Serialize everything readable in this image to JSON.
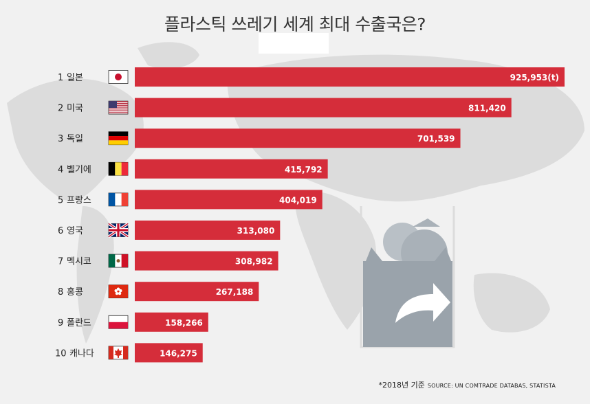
{
  "title": "플라스틱 쓰레기 세계 최대 수출국은?",
  "footnote": "*2018년 기준",
  "source": "SOURCE: UN COMTRADE DATABAS, STATISTA",
  "colors": {
    "bar": "#d52d3a",
    "background": "#f1f1f1",
    "map": "#dadada",
    "icon": "#9aa3ab"
  },
  "icon": "export-trash-bag-icon",
  "chart_data": {
    "type": "bar",
    "orientation": "horizontal",
    "title": "플라스틱 쓰레기 세계 최대 수출국은?",
    "unit": "(t)",
    "xlim": [
      0,
      925953
    ],
    "categories": [
      "일본",
      "미국",
      "독일",
      "벨기에",
      "프랑스",
      "영국",
      "멕시코",
      "홍콩",
      "폴란드",
      "캐나다"
    ],
    "ranks": [
      "1",
      "2",
      "3",
      "4",
      "5",
      "6",
      "7",
      "8",
      "9",
      "10"
    ],
    "flags": [
      "japan",
      "usa",
      "germany",
      "belgium",
      "france",
      "uk",
      "mexico",
      "hongkong",
      "poland",
      "canada"
    ],
    "values": [
      925953,
      811420,
      701539,
      415792,
      404019,
      313080,
      308982,
      267188,
      158266,
      146275
    ],
    "labels": [
      "925,953(t)",
      "811,420",
      "701,539",
      "415,792",
      "404,019",
      "313,080",
      "308,982",
      "267,188",
      "158,266",
      "146,275"
    ]
  }
}
